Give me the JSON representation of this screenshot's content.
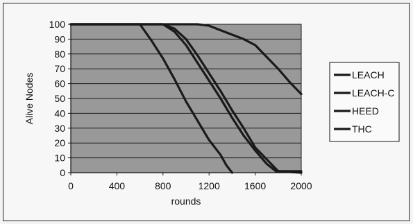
{
  "chart_data": {
    "type": "line",
    "xlabel": "rounds",
    "ylabel": "Alive Nodes",
    "xlim": [
      0,
      2000
    ],
    "ylim": [
      0,
      100
    ],
    "xticks": [
      0,
      400,
      800,
      1200,
      1600,
      2000
    ],
    "yticks": [
      0,
      10,
      20,
      30,
      40,
      50,
      60,
      70,
      80,
      90,
      100
    ],
    "grid": true,
    "legend_position": "right",
    "colors": {
      "plot_area": "#999999",
      "line": "#1a1a1a",
      "grid": "#1a1a1a"
    },
    "series": [
      {
        "name": "LEACH",
        "x": [
          0,
          600,
          700,
          800,
          900,
          1000,
          1100,
          1200,
          1300,
          1350,
          1400
        ],
        "y": [
          100,
          100,
          89,
          77,
          63,
          48,
          35,
          22,
          12,
          5,
          0
        ]
      },
      {
        "name": "LEACH-C",
        "x": [
          0,
          800,
          900,
          1000,
          1100,
          1200,
          1300,
          1400,
          1500,
          1600,
          1700,
          1800,
          2000
        ],
        "y": [
          100,
          100,
          97,
          90,
          79,
          67,
          55,
          42,
          30,
          17,
          9,
          1,
          0
        ]
      },
      {
        "name": "HEED",
        "x": [
          0,
          800,
          900,
          1000,
          1100,
          1200,
          1300,
          1400,
          1500,
          1600,
          1700,
          1780,
          2000
        ],
        "y": [
          100,
          100,
          95,
          86,
          74,
          62,
          50,
          37,
          25,
          15,
          6,
          1,
          1
        ]
      },
      {
        "name": "THC",
        "x": [
          0,
          1100,
          1200,
          1300,
          1400,
          1500,
          1600,
          1700,
          1800,
          1900,
          2000
        ],
        "y": [
          100,
          100,
          99,
          96,
          93,
          90,
          86,
          78,
          70,
          61,
          53
        ]
      }
    ]
  }
}
